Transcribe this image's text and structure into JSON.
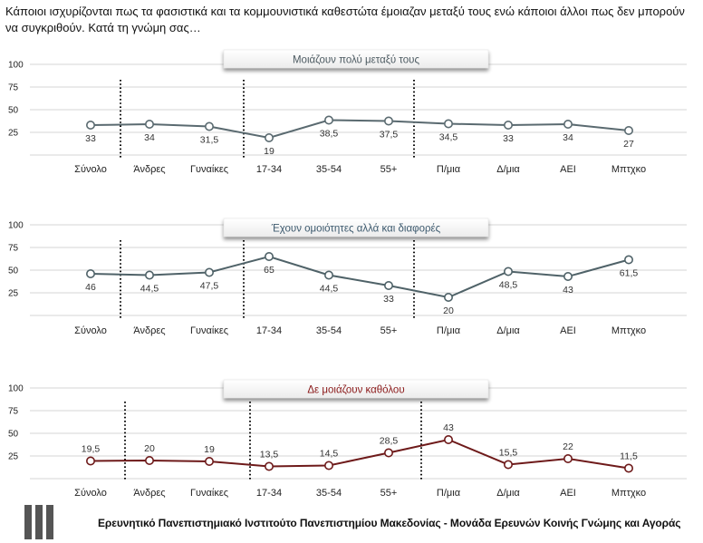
{
  "question": "Κάποιοι ισχυρίζονται πως τα φασιστικά και τα κομμουνιστικά καθεστώτα έμοιαζαν μεταξύ τους ενώ κάποιοι άλλοι πως δεν μπορούν να συγκριθούν. Κατά τη γνώμη σας…",
  "footer": "Ερευνητικό Πανεπιστημιακό Ινστιτούτο Πανεπιστημίου Μακεδονίας - Μονάδα Ερευνών Κοινής Γνώμης και Αγοράς",
  "logo_icon": "bars-logo-icon",
  "chart_data": [
    {
      "type": "line",
      "title": "Μοιάζουν πολύ μεταξύ τους",
      "title_color": "#4d5b62",
      "color": "#5a6a70",
      "categories": [
        "Σύνολο",
        "Άνδρες",
        "Γυναίκες",
        "17-34",
        "35-54",
        "55+",
        "Π/μια",
        "Δ/μια",
        "ΑΕΙ",
        "Μπτχκο"
      ],
      "values": [
        33,
        34,
        31.5,
        19,
        38.5,
        37.5,
        34.5,
        33,
        34,
        27
      ],
      "value_labels": [
        "33",
        "34",
        "31,5",
        "19",
        "38,5",
        "37,5",
        "34,5",
        "33",
        "34",
        "27"
      ],
      "label_position": "below",
      "yticks": [
        "100",
        "75",
        "50",
        "25"
      ],
      "ylim": [
        0,
        100
      ],
      "separators_after": [
        "Σύνολο",
        "Γυναίκες",
        "55+"
      ]
    },
    {
      "type": "line",
      "title": "Έχουν ομοιότητες αλλά και διαφορές",
      "title_color": "#3d5a6e",
      "color": "#4f6268",
      "categories": [
        "Σύνολο",
        "Άνδρες",
        "Γυναίκες",
        "17-34",
        "35-54",
        "55+",
        "Π/μια",
        "Δ/μια",
        "ΑΕΙ",
        "Μπτχκο"
      ],
      "values": [
        46,
        44.5,
        47.5,
        65,
        44.5,
        33,
        20,
        48.5,
        43,
        61.5
      ],
      "value_labels": [
        "46",
        "44,5",
        "47,5",
        "65",
        "44,5",
        "33",
        "20",
        "48,5",
        "43",
        "61,5"
      ],
      "label_position": "below",
      "yticks": [
        "100",
        "75",
        "50",
        "25"
      ],
      "ylim": [
        0,
        100
      ],
      "separators_after": [
        "Σύνολο",
        "Γυναίκες",
        "55+"
      ]
    },
    {
      "type": "line",
      "title": "Δε μοιάζουν καθόλου",
      "title_color": "#8b1a1a",
      "color": "#6e1a1a",
      "categories": [
        "Σύνολο",
        "Άνδρες",
        "Γυναίκες",
        "17-34",
        "35-54",
        "55+",
        "Π/μια",
        "Δ/μια",
        "ΑΕΙ",
        "Μπτχκο"
      ],
      "values": [
        19.5,
        20,
        19,
        13.5,
        14.5,
        28.5,
        43,
        15.5,
        22,
        11.5
      ],
      "value_labels": [
        "19,5",
        "20",
        "19",
        "13,5",
        "14,5",
        "28,5",
        "43",
        "15,5",
        "22",
        "11,5"
      ],
      "label_position": "above",
      "yticks": [
        "100",
        "75",
        "50",
        "25"
      ],
      "ylim": [
        0,
        100
      ],
      "separators_after": [
        "Σύνολο",
        "Γυναίκες",
        "55+"
      ]
    }
  ]
}
